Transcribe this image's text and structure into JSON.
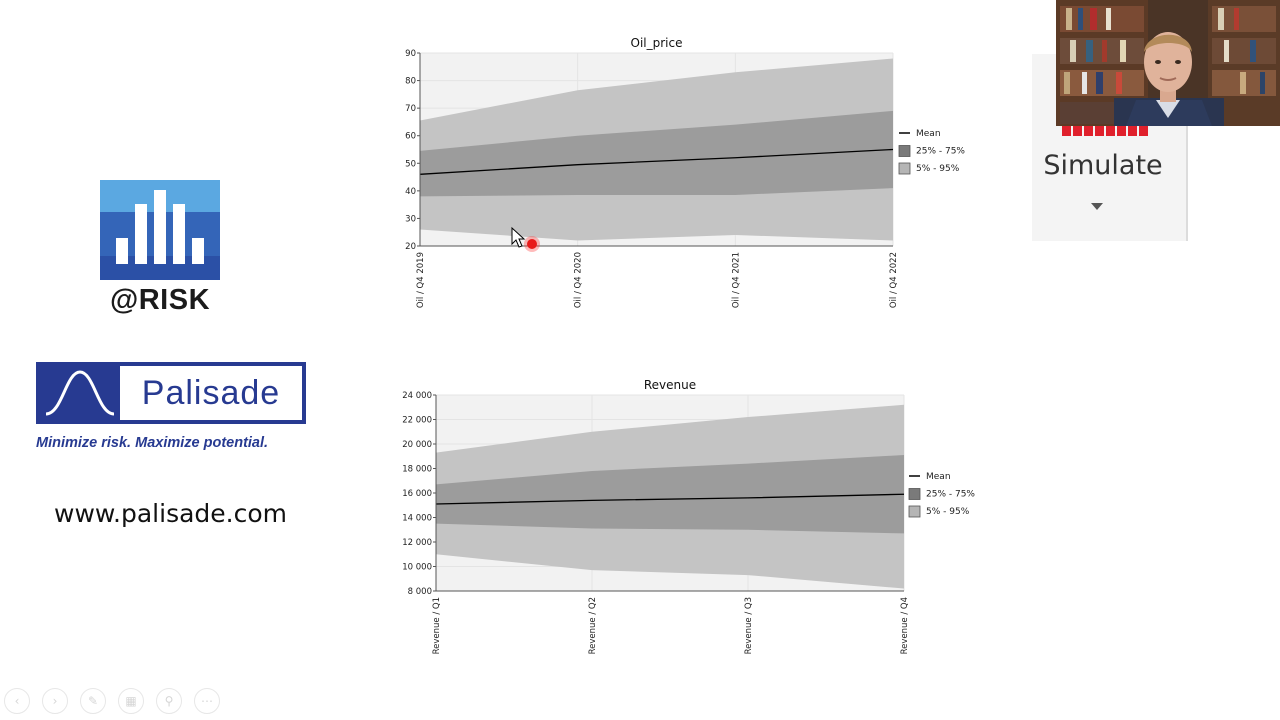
{
  "branding": {
    "atrisk_text": "@RISK",
    "palisade_word": "Palisade",
    "tagline": "Minimize risk. Maximize potential.",
    "website": "www.palisade.com",
    "colors": {
      "atrisk_blue": "#2f5fb5",
      "atrisk_light": "#5aa6e0",
      "palisade_navy": "#273a91"
    }
  },
  "simulate": {
    "label": "Simulate",
    "accent": "#e0202c"
  },
  "nav": {
    "icons": [
      "prev-icon",
      "next-icon",
      "pen-icon",
      "slides-icon",
      "zoom-icon",
      "more-icon"
    ]
  },
  "chart_data": [
    {
      "type": "area",
      "title": "Oil_price",
      "categories": [
        "Oil / Q4 2019",
        "Oil / Q4 2020",
        "Oil / Q4 2021",
        "Oil / Q4 2022"
      ],
      "ylim": [
        20,
        90
      ],
      "yticks": [
        20,
        30,
        40,
        50,
        60,
        70,
        80,
        90
      ],
      "ytick_labels": [
        "20",
        "30",
        "40",
        "50",
        "60",
        "70",
        "80",
        "90"
      ],
      "series": [
        {
          "name": "Mean",
          "values": [
            46,
            49.5,
            52,
            55
          ]
        },
        {
          "name": "25% - 75%",
          "lower": [
            38,
            38.5,
            38.5,
            41
          ],
          "upper": [
            54.5,
            60,
            64,
            69
          ]
        },
        {
          "name": "5% - 95%",
          "lower": [
            26,
            22,
            24,
            22
          ],
          "upper": [
            65.5,
            76.5,
            83,
            88
          ]
        }
      ],
      "legend": [
        "Mean",
        "25% - 75%",
        "5% - 95%"
      ],
      "legend_position": "right",
      "grid": true
    },
    {
      "type": "area",
      "title": "Revenue",
      "categories": [
        "Revenue / Q1",
        "Revenue / Q2",
        "Revenue / Q3",
        "Revenue / Q4"
      ],
      "ylim": [
        8000,
        24000
      ],
      "yticks": [
        8000,
        10000,
        12000,
        14000,
        16000,
        18000,
        20000,
        22000,
        24000
      ],
      "ytick_labels": [
        "8 000",
        "10 000",
        "12 000",
        "14 000",
        "16 000",
        "18 000",
        "20 000",
        "22 000",
        "24 000"
      ],
      "series": [
        {
          "name": "Mean",
          "values": [
            15100,
            15400,
            15600,
            15900
          ]
        },
        {
          "name": "25% - 75%",
          "lower": [
            13500,
            13100,
            13000,
            12700
          ],
          "upper": [
            16700,
            17800,
            18400,
            19100
          ]
        },
        {
          "name": "5% - 95%",
          "lower": [
            11000,
            9700,
            9300,
            8200
          ],
          "upper": [
            19300,
            21000,
            22200,
            23200
          ]
        }
      ],
      "legend": [
        "Mean",
        "25% - 75%",
        "5% - 95%"
      ],
      "legend_position": "right",
      "grid": true
    }
  ]
}
